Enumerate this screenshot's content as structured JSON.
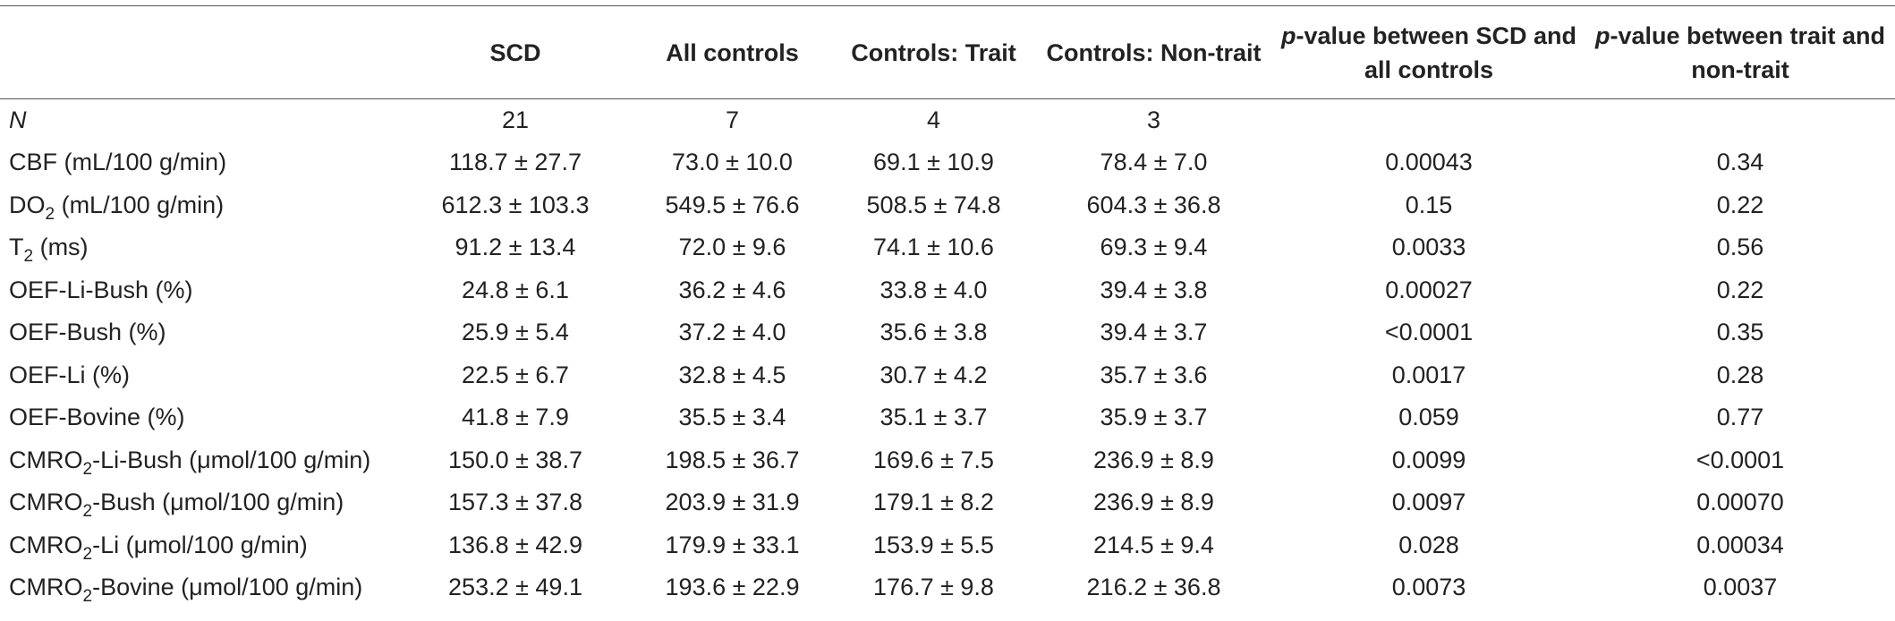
{
  "table": {
    "headers": {
      "scd": "SCD",
      "all_controls": "All controls",
      "controls_trait": "Controls: Trait",
      "controls_nontrait": "Controls: Non-trait",
      "p1_italic": "p",
      "p1_rest": "-value between SCD and all controls",
      "p2_italic": "p",
      "p2_rest": "-value between trait and non-trait"
    },
    "n_row": {
      "label": "N",
      "scd": "21",
      "all": "7",
      "trait": "4",
      "nontrait": "3"
    },
    "rows": [
      {
        "label_pre": "CBF (mL/100 g/min)",
        "sub": "",
        "label_post": "",
        "scd": "118.7 ± 27.7",
        "all": "73.0 ± 10.0",
        "trait": "69.1 ± 10.9",
        "nontrait": "78.4 ± 7.0",
        "p_scd_all": "0.00043",
        "p_trait_non": "0.34"
      },
      {
        "label_pre": "DO",
        "sub": "2",
        "label_post": " (mL/100 g/min)",
        "scd": "612.3 ± 103.3",
        "all": "549.5 ± 76.6",
        "trait": "508.5 ± 74.8",
        "nontrait": "604.3 ± 36.8",
        "p_scd_all": "0.15",
        "p_trait_non": "0.22"
      },
      {
        "label_pre": "T",
        "sub": "2",
        "label_post": " (ms)",
        "scd": "91.2 ± 13.4",
        "all": "72.0 ± 9.6",
        "trait": "74.1 ± 10.6",
        "nontrait": "69.3 ± 9.4",
        "p_scd_all": "0.0033",
        "p_trait_non": "0.56"
      },
      {
        "label_pre": "OEF-Li-Bush (%)",
        "sub": "",
        "label_post": "",
        "scd": "24.8 ± 6.1",
        "all": "36.2 ± 4.6",
        "trait": "33.8 ± 4.0",
        "nontrait": "39.4 ± 3.8",
        "p_scd_all": "0.00027",
        "p_trait_non": "0.22"
      },
      {
        "label_pre": "OEF-Bush (%)",
        "sub": "",
        "label_post": "",
        "scd": "25.9 ± 5.4",
        "all": "37.2 ± 4.0",
        "trait": "35.6 ± 3.8",
        "nontrait": "39.4 ± 3.7",
        "p_scd_all": "<0.0001",
        "p_trait_non": "0.35"
      },
      {
        "label_pre": "OEF-Li (%)",
        "sub": "",
        "label_post": "",
        "scd": "22.5 ± 6.7",
        "all": "32.8 ± 4.5",
        "trait": "30.7 ± 4.2",
        "nontrait": "35.7 ± 3.6",
        "p_scd_all": "0.0017",
        "p_trait_non": "0.28"
      },
      {
        "label_pre": "OEF-Bovine (%)",
        "sub": "",
        "label_post": "",
        "scd": "41.8 ± 7.9",
        "all": "35.5 ± 3.4",
        "trait": "35.1 ± 3.7",
        "nontrait": "35.9 ± 3.7",
        "p_scd_all": "0.059",
        "p_trait_non": "0.77"
      },
      {
        "label_pre": "CMRO",
        "sub": "2",
        "label_post": "-Li-Bush (μmol/100 g/min)",
        "scd": "150.0 ± 38.7",
        "all": "198.5 ± 36.7",
        "trait": "169.6 ± 7.5",
        "nontrait": "236.9 ± 8.9",
        "p_scd_all": "0.0099",
        "p_trait_non": "<0.0001"
      },
      {
        "label_pre": "CMRO",
        "sub": "2",
        "label_post": "-Bush (μmol/100 g/min)",
        "scd": "157.3 ± 37.8",
        "all": "203.9 ± 31.9",
        "trait": "179.1 ± 8.2",
        "nontrait": "236.9 ± 8.9",
        "p_scd_all": "0.0097",
        "p_trait_non": "0.00070"
      },
      {
        "label_pre": "CMRO",
        "sub": "2",
        "label_post": "-Li (μmol/100 g/min)",
        "scd": "136.8 ± 42.9",
        "all": "179.9 ± 33.1",
        "trait": "153.9 ± 5.5",
        "nontrait": "214.5 ± 9.4",
        "p_scd_all": "0.028",
        "p_trait_non": "0.00034"
      },
      {
        "label_pre": "CMRO",
        "sub": "2",
        "label_post": "-Bovine (μmol/100 g/min)",
        "scd": "253.2 ± 49.1",
        "all": "193.6 ± 22.9",
        "trait": "176.7 ± 9.8",
        "nontrait": "216.2 ± 36.8",
        "p_scd_all": "0.0073",
        "p_trait_non": "0.0037"
      }
    ]
  }
}
